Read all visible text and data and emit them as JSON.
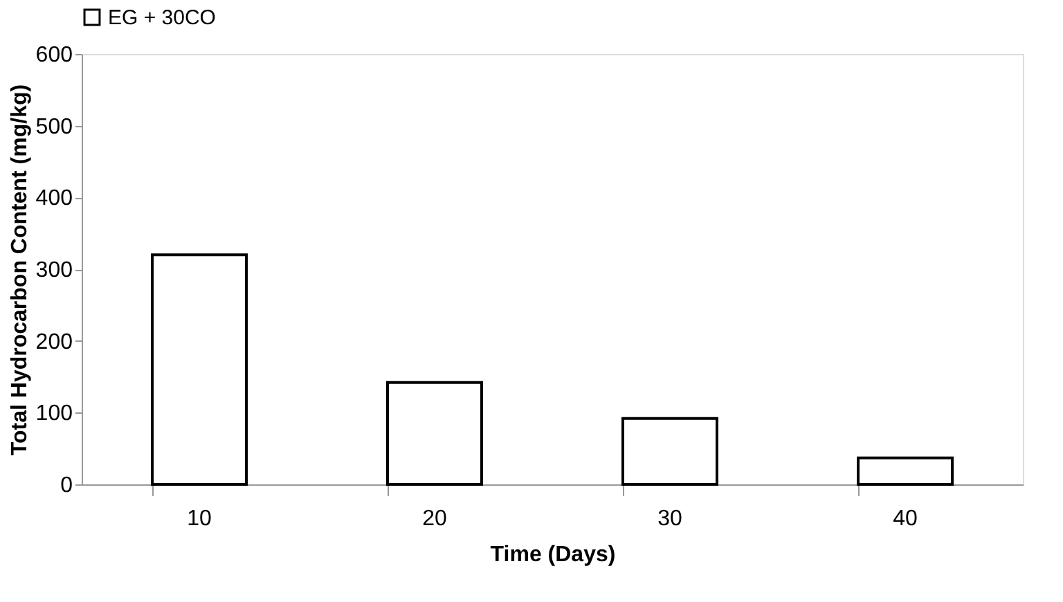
{
  "chart_data": {
    "type": "bar",
    "xlabel": "Time (Days)",
    "ylabel": "Total Hydrocarbon Content (mg/kg)",
    "categories": [
      "10",
      "20",
      "30",
      "40"
    ],
    "series": [
      {
        "name": "EG + 30CO",
        "color": "#ffffff",
        "values": [
          320,
          142,
          92,
          37
        ]
      }
    ],
    "ylim": [
      0,
      600
    ],
    "yticks": [
      0,
      100,
      200,
      300,
      400,
      500,
      600
    ],
    "grid": false,
    "legend": "top"
  }
}
